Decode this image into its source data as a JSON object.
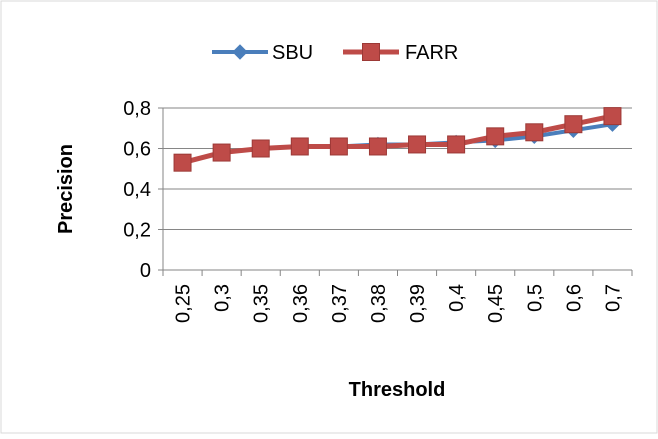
{
  "chart_data": {
    "type": "line",
    "title": "",
    "xlabel": "Threshold",
    "ylabel": "Precision",
    "categories": [
      "0,25",
      "0,3",
      "0,35",
      "0,36",
      "0,37",
      "0,38",
      "0,39",
      "0,4",
      "0,45",
      "0,5",
      "0,6",
      "0,7"
    ],
    "series": [
      {
        "name": "SBU",
        "values": [
          0.53,
          0.58,
          0.6,
          0.61,
          0.61,
          0.62,
          0.62,
          0.63,
          0.64,
          0.66,
          0.69,
          0.72
        ],
        "color": "#4a7ebb",
        "marker": "diamond"
      },
      {
        "name": "FARR",
        "values": [
          0.53,
          0.58,
          0.6,
          0.61,
          0.61,
          0.61,
          0.62,
          0.62,
          0.66,
          0.68,
          0.72,
          0.76
        ],
        "color": "#be4b48",
        "marker": "square"
      }
    ],
    "yticks": [
      "0",
      "0,2",
      "0,4",
      "0,6",
      "0,8"
    ],
    "ylim": [
      0,
      0.8
    ],
    "grid": true,
    "legend_position": "top"
  }
}
